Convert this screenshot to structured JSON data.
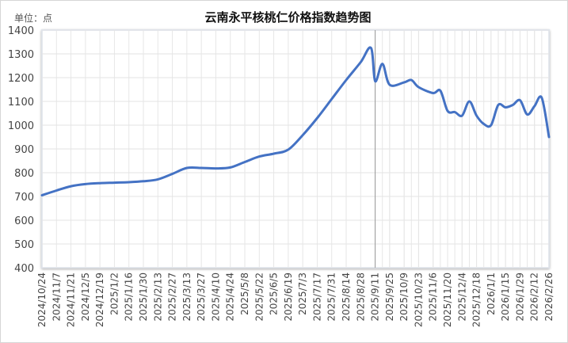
{
  "chart_data": {
    "type": "line",
    "title": "云南永平核桃仁价格指数趋势图",
    "unit_label": "单位：点",
    "xlabel": "",
    "ylabel": "点",
    "ylim": [
      400,
      1400
    ],
    "yticks": [
      1400,
      1300,
      1200,
      1100,
      1000,
      900,
      800,
      700,
      600,
      500,
      400
    ],
    "grid": true,
    "legend": "none",
    "x_tick_labels": [
      "2024/10/24",
      "2024/11/7",
      "2024/11/21",
      "2024/12/5",
      "2024/12/19",
      "2025/1/2",
      "2025/1/16",
      "2025/1/30",
      "2025/2/13",
      "2025/2/27",
      "2025/3/13",
      "2025/3/27",
      "2025/4/10",
      "2025/4/24",
      "2025/5/8",
      "2025/5/22",
      "2025/6/5",
      "2025/6/19",
      "2025/7/3",
      "2025/7/17",
      "2025/7/31",
      "2025/8/14",
      "2025/8/28",
      "2025/9/11",
      "2025/9/25",
      "2025/10/9",
      "2025/10/23",
      "2025/11/6",
      "2025/11/20",
      "2025/12/4",
      "2025/12/18",
      "2026/1/1",
      "2026/1/15",
      "2026/1/29",
      "2026/2/12",
      "2026/2/26"
    ],
    "series": [
      {
        "name": "云南永平核桃仁价格指数",
        "color": "#4472c4",
        "points": [
          {
            "x": "2024/10/24",
            "y": 705
          },
          {
            "x": "2024/11/7",
            "y": 725
          },
          {
            "x": "2024/11/21",
            "y": 743
          },
          {
            "x": "2024/12/5",
            "y": 752
          },
          {
            "x": "2024/12/19",
            "y": 756
          },
          {
            "x": "2025/1/2",
            "y": 758
          },
          {
            "x": "2025/1/16",
            "y": 760
          },
          {
            "x": "2025/1/30",
            "y": 764
          },
          {
            "x": "2025/2/13",
            "y": 772
          },
          {
            "x": "2025/2/27",
            "y": 795
          },
          {
            "x": "2025/3/13",
            "y": 820
          },
          {
            "x": "2025/3/27",
            "y": 820
          },
          {
            "x": "2025/4/10",
            "y": 818
          },
          {
            "x": "2025/4/24",
            "y": 822
          },
          {
            "x": "2025/5/8",
            "y": 845
          },
          {
            "x": "2025/5/22",
            "y": 868
          },
          {
            "x": "2025/6/5",
            "y": 880
          },
          {
            "x": "2025/6/19",
            "y": 897
          },
          {
            "x": "2025/7/3",
            "y": 958
          },
          {
            "x": "2025/7/17",
            "y": 1030
          },
          {
            "x": "2025/7/31",
            "y": 1110
          },
          {
            "x": "2025/8/14",
            "y": 1190
          },
          {
            "x": "2025/8/28",
            "y": 1265
          },
          {
            "x": "2025/9/7",
            "y": 1325
          },
          {
            "x": "2025/9/11",
            "y": 1185
          },
          {
            "x": "2025/9/18",
            "y": 1258
          },
          {
            "x": "2025/9/25",
            "y": 1170
          },
          {
            "x": "2025/10/9",
            "y": 1180
          },
          {
            "x": "2025/10/16",
            "y": 1190
          },
          {
            "x": "2025/10/23",
            "y": 1160
          },
          {
            "x": "2025/11/6",
            "y": 1135
          },
          {
            "x": "2025/11/13",
            "y": 1145
          },
          {
            "x": "2025/11/20",
            "y": 1060
          },
          {
            "x": "2025/11/27",
            "y": 1055
          },
          {
            "x": "2025/12/4",
            "y": 1040
          },
          {
            "x": "2025/12/11",
            "y": 1100
          },
          {
            "x": "2025/12/18",
            "y": 1040
          },
          {
            "x": "2025/12/25",
            "y": 1005
          },
          {
            "x": "2026/1/1",
            "y": 1000
          },
          {
            "x": "2026/1/8",
            "y": 1085
          },
          {
            "x": "2026/1/15",
            "y": 1075
          },
          {
            "x": "2026/1/22",
            "y": 1085
          },
          {
            "x": "2026/1/29",
            "y": 1105
          },
          {
            "x": "2026/2/5",
            "y": 1045
          },
          {
            "x": "2026/2/12",
            "y": 1080
          },
          {
            "x": "2026/2/19",
            "y": 1115
          },
          {
            "x": "2026/2/26",
            "y": 950
          }
        ]
      }
    ],
    "annotations": [
      {
        "type": "vertical-line",
        "x": "2025/9/11",
        "color": "#999999"
      }
    ]
  },
  "header": {
    "title": "云南永平核桃仁价格指数趋势图",
    "unit": "单位：点"
  }
}
